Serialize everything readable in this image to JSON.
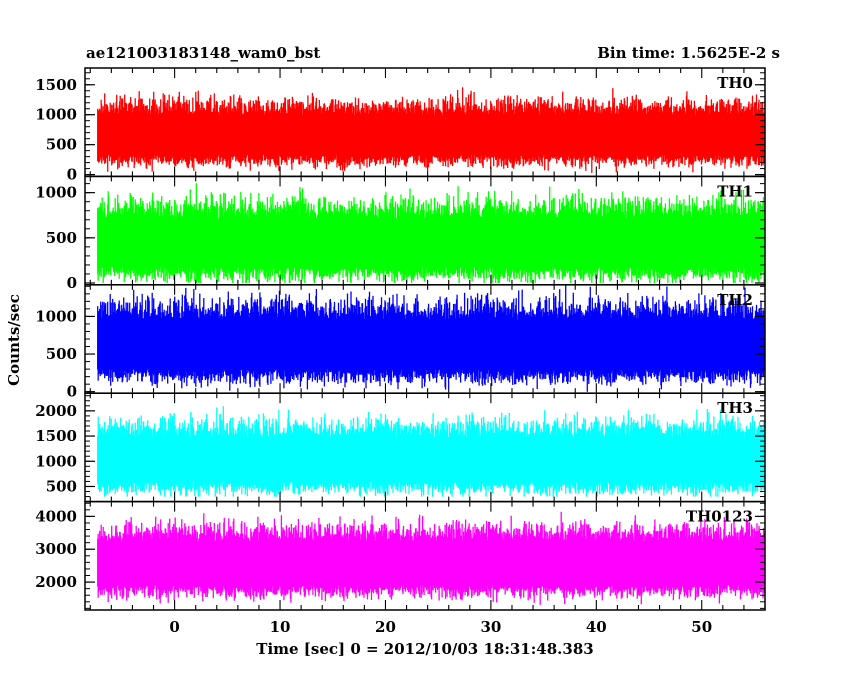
{
  "header": {
    "title": "ae121003183148_wam0_bst",
    "bin_time": "Bin time: 1.5625E-2 s"
  },
  "axes": {
    "x_label": "Time [sec] 0 = 2012/10/03 18:31:48.383",
    "y_label": "Counts/sec"
  },
  "colors": {
    "TH0": "#ff0000",
    "TH1": "#00ff00",
    "TH2": "#0000ff",
    "TH3": "#00ffff",
    "TH0123": "#ff00ff"
  },
  "chart_data": {
    "type": "line",
    "x_range": [
      -8.5,
      56
    ],
    "x_ticks": [
      0,
      10,
      20,
      30,
      40,
      50
    ],
    "x_tick_labels": [
      "0",
      "10",
      "20",
      "30",
      "40",
      "50"
    ],
    "data_x_range": [
      -7.3,
      56
    ],
    "grid": false,
    "panels": [
      {
        "name": "TH0",
        "ylim": [
          -30,
          1780
        ],
        "yticks": [
          0,
          500,
          1000,
          1500
        ],
        "ytick_labels": [
          "0",
          "500",
          "1000",
          "1500"
        ],
        "mean": 750,
        "spread": 260,
        "min": 0,
        "max": 1780
      },
      {
        "name": "TH1",
        "ylim": [
          -20,
          1180
        ],
        "yticks": [
          0,
          500,
          1000
        ],
        "ytick_labels": [
          "0",
          "500",
          "1000"
        ],
        "mean": 520,
        "spread": 210,
        "min": 0,
        "max": 1180
      },
      {
        "name": "TH2",
        "ylim": [
          -20,
          1420
        ],
        "yticks": [
          0,
          500,
          1000
        ],
        "ytick_labels": [
          "0",
          "500",
          "1000"
        ],
        "mean": 720,
        "spread": 260,
        "min": 0,
        "max": 1420
      },
      {
        "name": "TH3",
        "ylim": [
          200,
          2350
        ],
        "yticks": [
          500,
          1000,
          1500,
          2000
        ],
        "ytick_labels": [
          "500",
          "1000",
          "1500",
          "2000"
        ],
        "mean": 1150,
        "spread": 340,
        "min": 300,
        "max": 2350
      },
      {
        "name": "TH0123",
        "ylim": [
          1150,
          4450
        ],
        "yticks": [
          2000,
          3000,
          4000
        ],
        "ytick_labels": [
          "2000",
          "3000",
          "4000"
        ],
        "mean": 2750,
        "spread": 520,
        "min": 1150,
        "max": 4450
      }
    ]
  }
}
